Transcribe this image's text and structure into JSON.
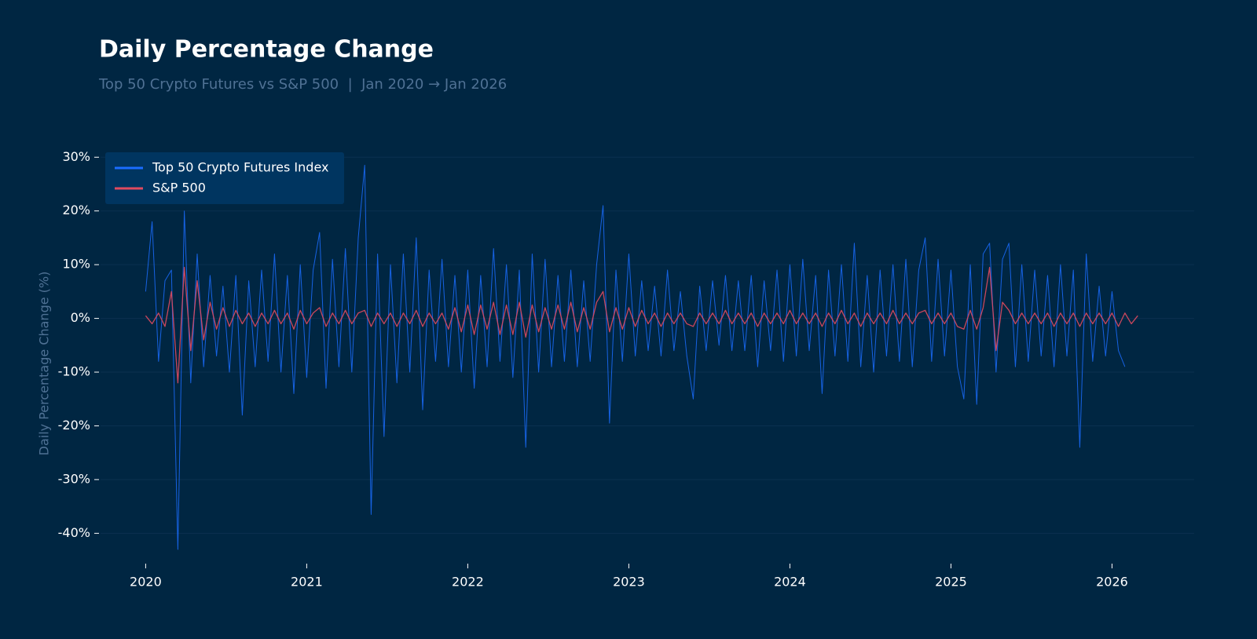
{
  "chart_data": {
    "type": "line",
    "title": "Daily Percentage Change",
    "subtitle": "Top 50 Crypto Futures vs S&P 500  |  Jan 2020 → Jan 2026",
    "y_label": "Daily Percentage Change (%)",
    "legend": "upper left",
    "grid": true,
    "xlim": [
      2019.72,
      2026.51
    ],
    "ylim": [
      -45.5,
      31.5
    ],
    "xticks": [
      2020,
      2021,
      2022,
      2023,
      2024,
      2025,
      2026
    ],
    "yticks": [
      {
        "value": -40,
        "label": "-40%"
      },
      {
        "value": -30,
        "label": "-30%"
      },
      {
        "value": -20,
        "label": "-20%"
      },
      {
        "value": -10,
        "label": "-10%"
      },
      {
        "value": 0,
        "label": "0%"
      },
      {
        "value": 10,
        "label": "10%"
      },
      {
        "value": 20,
        "label": "20%"
      },
      {
        "value": 30,
        "label": "30%"
      }
    ],
    "x": [
      2020,
      2020.04,
      2020.08,
      2020.12,
      2020.16,
      2020.2,
      2020.24,
      2020.28,
      2020.32,
      2020.36,
      2020.4,
      2020.44,
      2020.48,
      2020.52,
      2020.56,
      2020.6,
      2020.64,
      2020.68,
      2020.72,
      2020.76,
      2020.8,
      2020.84,
      2020.88,
      2020.92,
      2020.96,
      2021,
      2021.04,
      2021.08,
      2021.12,
      2021.16,
      2021.2,
      2021.24,
      2021.28,
      2021.32,
      2021.36,
      2021.4,
      2021.44,
      2021.48,
      2021.52,
      2021.56,
      2021.6,
      2021.64,
      2021.68,
      2021.72,
      2021.76,
      2021.8,
      2021.84,
      2021.88,
      2021.92,
      2021.96,
      2022,
      2022.04,
      2022.08,
      2022.12,
      2022.16,
      2022.2,
      2022.24,
      2022.28,
      2022.32,
      2022.36,
      2022.4,
      2022.44,
      2022.48,
      2022.52,
      2022.56,
      2022.6,
      2022.64,
      2022.68,
      2022.72,
      2022.76,
      2022.8,
      2022.84,
      2022.88,
      2022.92,
      2022.96,
      2023,
      2023.04,
      2023.08,
      2023.12,
      2023.16,
      2023.2,
      2023.24,
      2023.28,
      2023.32,
      2023.36,
      2023.4,
      2023.44,
      2023.48,
      2023.52,
      2023.56,
      2023.6,
      2023.64,
      2023.68,
      2023.72,
      2023.76,
      2023.8,
      2023.84,
      2023.88,
      2023.92,
      2023.96,
      2024,
      2024.04,
      2024.08,
      2024.12,
      2024.16,
      2024.2,
      2024.24,
      2024.28,
      2024.32,
      2024.36,
      2024.4,
      2024.44,
      2024.48,
      2024.52,
      2024.56,
      2024.6,
      2024.64,
      2024.68,
      2024.72,
      2024.76,
      2024.8,
      2024.84,
      2024.88,
      2024.92,
      2024.96,
      2025,
      2025.04,
      2025.08,
      2025.12,
      2025.16,
      2025.2,
      2025.24,
      2025.28,
      2025.32,
      2025.36,
      2025.4,
      2025.44,
      2025.48,
      2025.52,
      2025.56,
      2025.6,
      2025.64,
      2025.68,
      2025.72,
      2025.76,
      2025.8,
      2025.84,
      2025.88,
      2025.92,
      2025.96,
      2026,
      2026.04,
      2026.08,
      2026.12,
      2026.16
    ],
    "series": [
      {
        "name": "Top 50 Crypto Futures Index",
        "color": "#1a6dff",
        "values": [
          5,
          18,
          -8,
          7,
          9,
          -43,
          20,
          -12,
          12,
          -9,
          8,
          -7,
          6,
          -10,
          8,
          -18,
          7,
          -9,
          9,
          -8,
          12,
          -10,
          8,
          -14,
          10,
          -11,
          9,
          16,
          -13,
          11,
          -9,
          13,
          -10,
          15,
          28.5,
          -36.5,
          12,
          -22,
          10,
          -12,
          12,
          -10,
          15,
          -17,
          9,
          -8,
          11,
          -9,
          8,
          -10,
          9,
          -13,
          8,
          -9,
          13,
          -8,
          10,
          -11,
          9,
          -24,
          12,
          -10,
          11,
          -9,
          8,
          -8,
          9,
          -9,
          7,
          -8,
          10,
          21,
          -19.5,
          9,
          -8,
          12,
          -7,
          7,
          -6,
          6,
          -7,
          9,
          -6,
          5,
          -7,
          -15,
          6,
          -6,
          7,
          -5,
          8,
          -6,
          7,
          -6,
          8,
          -9,
          7,
          -6,
          9,
          -8,
          10,
          -7,
          11,
          -6,
          8,
          -14,
          9,
          -7,
          10,
          -8,
          14,
          -9,
          8,
          -10,
          9,
          -7,
          10,
          -8,
          11,
          -9,
          9,
          15,
          -8,
          11,
          -7,
          9,
          -9,
          -15,
          10,
          -16,
          12,
          14,
          -10,
          11,
          14,
          -9,
          10,
          -8,
          9,
          -7,
          8,
          -9,
          10,
          -7,
          9,
          -24,
          12,
          -8,
          6,
          -7,
          5,
          -6,
          -9,
          null,
          null
        ]
      },
      {
        "name": "S&P 500",
        "color": "#e04a5f",
        "values": [
          0.5,
          -1,
          1,
          -1.5,
          5,
          -12,
          9.5,
          -6,
          7,
          -4,
          3,
          -2,
          2,
          -1.5,
          1.5,
          -1,
          1,
          -1.5,
          1,
          -1,
          1.5,
          -1,
          1,
          -2,
          1.5,
          -1,
          1,
          2,
          -1.5,
          1,
          -1,
          1.5,
          -1,
          1,
          1.5,
          -1.5,
          1,
          -1,
          1,
          -1.5,
          1,
          -1,
          1.5,
          -1.5,
          1,
          -1,
          1,
          -2,
          2,
          -2.5,
          2.5,
          -3,
          2.5,
          -2,
          3,
          -3,
          2.5,
          -3,
          3,
          -3.5,
          2.5,
          -2.5,
          2,
          -2,
          2.5,
          -2,
          3,
          -2.5,
          2,
          -2,
          3,
          5,
          -2.5,
          2,
          -2,
          2,
          -1.5,
          1.5,
          -1,
          1,
          -1.5,
          1,
          -1,
          1,
          -1,
          -1.5,
          1,
          -1,
          1,
          -1,
          1.5,
          -1,
          1,
          -1,
          1,
          -1.5,
          1,
          -1,
          1,
          -1,
          1.5,
          -1,
          1,
          -1,
          1,
          -1.5,
          1,
          -1,
          1.5,
          -1,
          1,
          -1.5,
          1,
          -1,
          1,
          -1,
          1.5,
          -1,
          1,
          -1,
          1,
          1.5,
          -1,
          1,
          -1,
          1,
          -1.5,
          -2,
          1.5,
          -2,
          2,
          9.5,
          -6,
          3,
          1.5,
          -1,
          1,
          -1,
          1,
          -1,
          1,
          -1.5,
          1,
          -1,
          1,
          -1.5,
          1,
          -1,
          1,
          -1,
          1,
          -1.5,
          1,
          -1,
          0.5
        ]
      }
    ]
  }
}
